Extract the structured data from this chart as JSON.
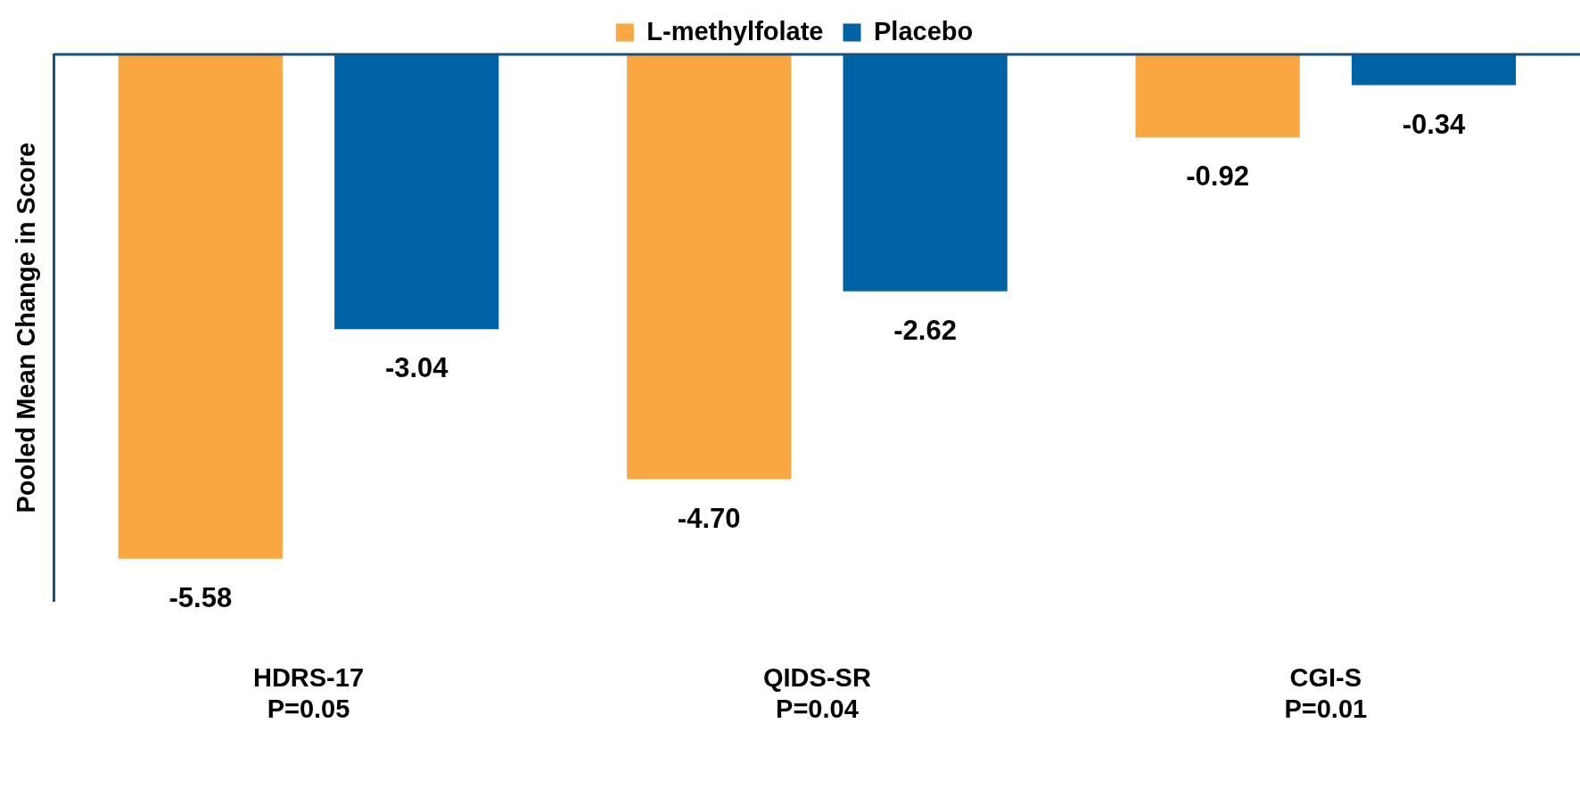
{
  "chart_data": {
    "type": "bar",
    "ylabel": "Pooled Mean Change in Score",
    "categories": [
      "HDRS-17\nP=0.05",
      "QIDS-SR\nP=0.04",
      "CGI-S\nP=0.01"
    ],
    "series": [
      {
        "name": "L-methylfolate",
        "color": "#f9a841",
        "values": [
          -5.58,
          -4.7,
          -0.92
        ],
        "value_labels": [
          "-5.58",
          "-4.70",
          "-0.92"
        ]
      },
      {
        "name": "Placebo",
        "color": "#0063a3",
        "values": [
          -3.04,
          -2.62,
          -0.34
        ],
        "value_labels": [
          "-3.04",
          "-2.62",
          "-0.34"
        ]
      }
    ],
    "ylim": [
      -6.05,
      0
    ],
    "tick_labels": "x",
    "legend": "top",
    "grid": false
  }
}
